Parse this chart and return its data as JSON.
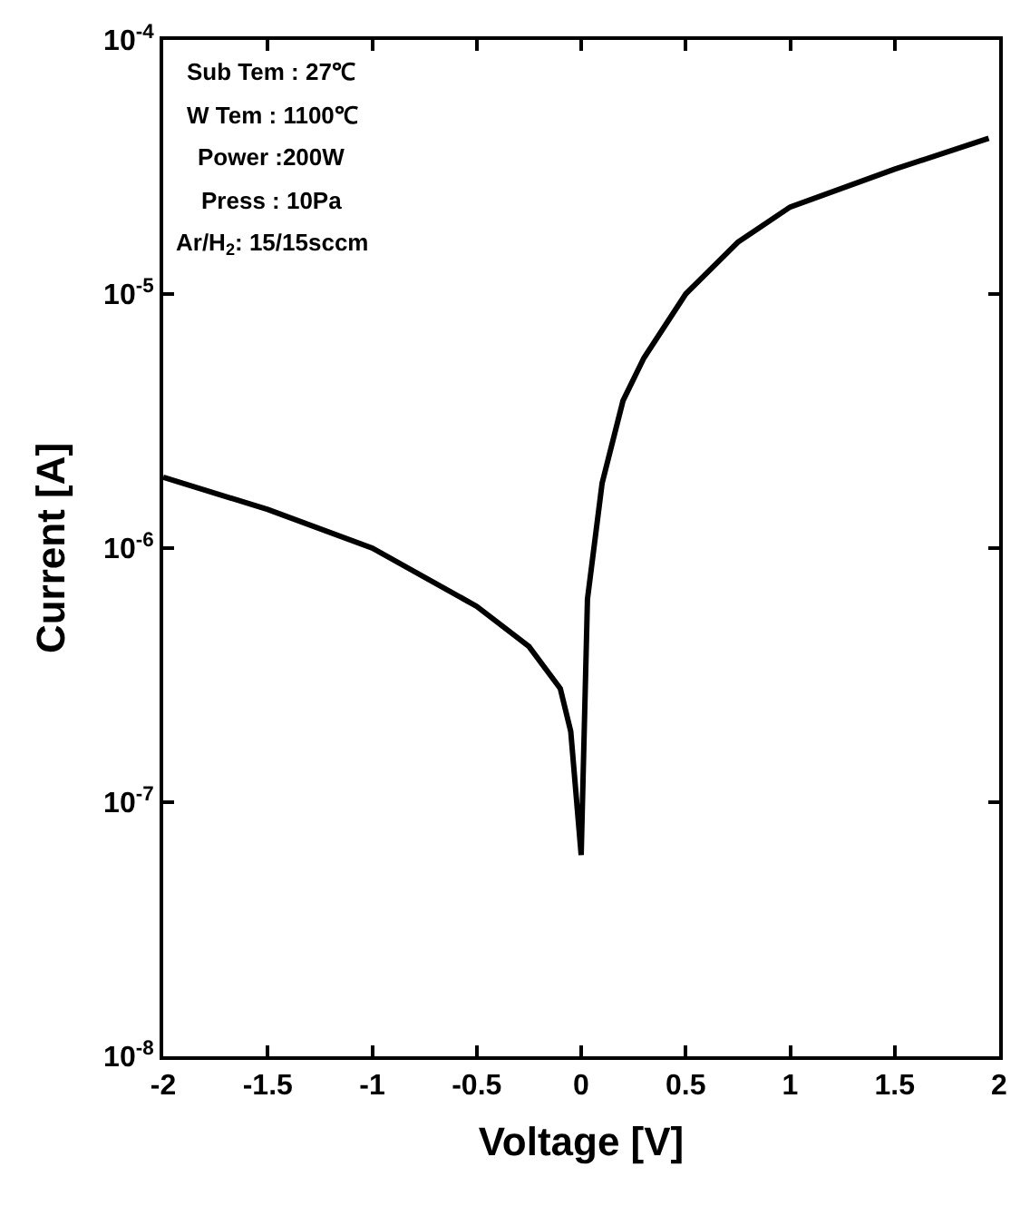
{
  "chart_data": {
    "type": "line",
    "xlabel": "Voltage [V]",
    "ylabel": "Current [A]",
    "x": [
      -2,
      -1.5,
      -1,
      -0.5,
      -0.25,
      -0.1,
      -0.05,
      0,
      0.03,
      0.1,
      0.2,
      0.3,
      0.5,
      0.75,
      1,
      1.5,
      1.95
    ],
    "series": [
      {
        "color": "#000000",
        "values": [
          1.9e-06,
          1.42e-06,
          1e-06,
          5.9e-07,
          4.1e-07,
          2.8e-07,
          1.9e-07,
          6.2e-08,
          6.3e-07,
          1.8e-06,
          3.8e-06,
          5.6e-06,
          1e-05,
          1.6e-05,
          2.2e-05,
          3.1e-05,
          4.1e-05
        ]
      }
    ],
    "log": "y",
    "marker": "none",
    "line_style": "solid",
    "xlim": [
      -2,
      2
    ],
    "xticks": [
      -2,
      -1.5,
      -1,
      -0.5,
      0,
      0.5,
      1,
      1.5,
      2
    ],
    "ylim": [
      1e-08,
      0.0001
    ],
    "yticks": [
      {
        "value": 1e-08,
        "label": "10$^{-8}$"
      },
      {
        "value": 1e-07,
        "label": "10$^{-7}$"
      },
      {
        "value": 1e-06,
        "label": "10$^{-6}$"
      },
      {
        "value": 1e-05,
        "label": "10$^{-5}$"
      },
      {
        "value": 0.0001,
        "label": "10$^{-4}$"
      }
    ],
    "annotations": [
      "Sub Tem : 27℃",
      "W Tem : 1100℃",
      "Power :200W",
      "Press : 10Pa",
      "Ar/H$_{2}$: 15/15sccm"
    ]
  }
}
